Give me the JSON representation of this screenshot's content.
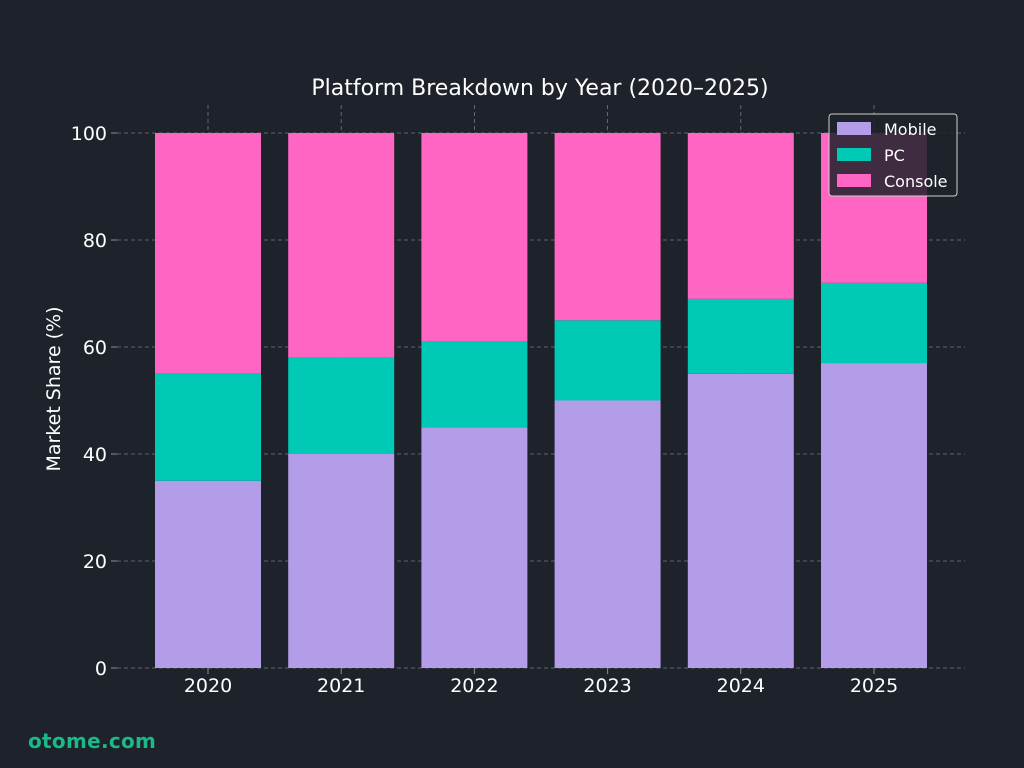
{
  "watermark": "otome.com",
  "colors": {
    "background": "#1e222a",
    "text": "#ffffff",
    "grid": "#8a8f98",
    "Mobile": "#b39ce8",
    "PC": "#00c9b5",
    "Console": "#ff66c4"
  },
  "chart_data": {
    "type": "bar",
    "stacked": true,
    "title": "Platform Breakdown by Year (2020–2025)",
    "xlabel": "",
    "ylabel": "Market Share (%)",
    "categories": [
      "2020",
      "2021",
      "2022",
      "2023",
      "2024",
      "2025"
    ],
    "series": [
      {
        "name": "Mobile",
        "values": [
          35,
          40,
          45,
          50,
          55,
          57
        ]
      },
      {
        "name": "PC",
        "values": [
          20,
          18,
          16,
          15,
          14,
          15
        ]
      },
      {
        "name": "Console",
        "values": [
          45,
          42,
          39,
          35,
          31,
          28
        ]
      }
    ],
    "ylim": [
      0,
      100
    ],
    "yticks": [
      "0",
      "20",
      "40",
      "60",
      "80",
      "100"
    ],
    "grid": true,
    "legend_position": "top-right"
  }
}
